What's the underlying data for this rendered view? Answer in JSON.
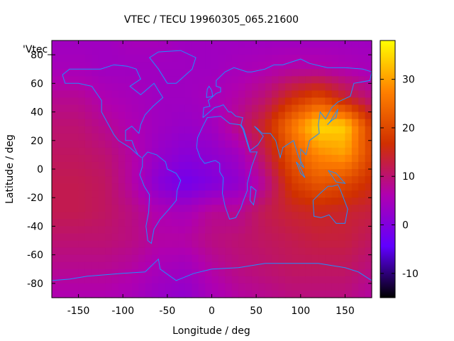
{
  "chart_data": {
    "type": "heatmap",
    "title": "VTEC / TECU 19960305_065.21600",
    "xlabel": "Longitude / deg",
    "ylabel": "Latitude / deg",
    "key_label": "'Vtec_",
    "xlim": [
      -180,
      180
    ],
    "ylim": [
      -90,
      90
    ],
    "x_ticks": [
      -150,
      -100,
      -50,
      0,
      50,
      100,
      150
    ],
    "y_ticks": [
      -80,
      -60,
      -40,
      -20,
      0,
      20,
      40,
      60,
      80
    ],
    "colorbar": {
      "range": [
        -15,
        38
      ],
      "ticks": [
        -10,
        0,
        10,
        20,
        30
      ],
      "palette": [
        "#000000",
        "#6000ff",
        "#b000b0",
        "#d03000",
        "#ff8000",
        "#ffff00"
      ]
    },
    "grid": false,
    "lon": [
      -180,
      -150,
      -120,
      -90,
      -60,
      -30,
      0,
      30,
      60,
      90,
      120,
      150,
      180
    ],
    "lat": [
      90,
      70,
      50,
      30,
      10,
      -10,
      -30,
      -50,
      -70,
      -90
    ],
    "values": [
      [
        4,
        4,
        4,
        5,
        5,
        4,
        4,
        4,
        4,
        4,
        4,
        4,
        4
      ],
      [
        5,
        5,
        4,
        4,
        4,
        4,
        4,
        5,
        6,
        7,
        7,
        6,
        5
      ],
      [
        8,
        8,
        6,
        5,
        4,
        4,
        5,
        7,
        10,
        16,
        20,
        14,
        9
      ],
      [
        10,
        10,
        8,
        6,
        4,
        3,
        4,
        9,
        15,
        26,
        35,
        34,
        18
      ],
      [
        11,
        11,
        10,
        7,
        3,
        1,
        2,
        4,
        12,
        22,
        28,
        30,
        19
      ],
      [
        12,
        12,
        11,
        7,
        1,
        -2,
        0,
        2,
        8,
        18,
        22,
        20,
        16
      ],
      [
        12,
        12,
        11,
        9,
        6,
        5,
        8,
        8,
        12,
        14,
        15,
        14,
        13
      ],
      [
        10,
        10,
        10,
        9,
        7,
        7,
        9,
        10,
        11,
        12,
        13,
        13,
        11
      ],
      [
        8,
        8,
        8,
        7,
        5,
        4,
        7,
        9,
        10,
        11,
        11,
        11,
        9
      ],
      [
        6,
        6,
        6,
        5,
        3,
        2,
        5,
        7,
        8,
        9,
        9,
        9,
        7
      ]
    ],
    "coastline_color": "#1e90ff"
  }
}
